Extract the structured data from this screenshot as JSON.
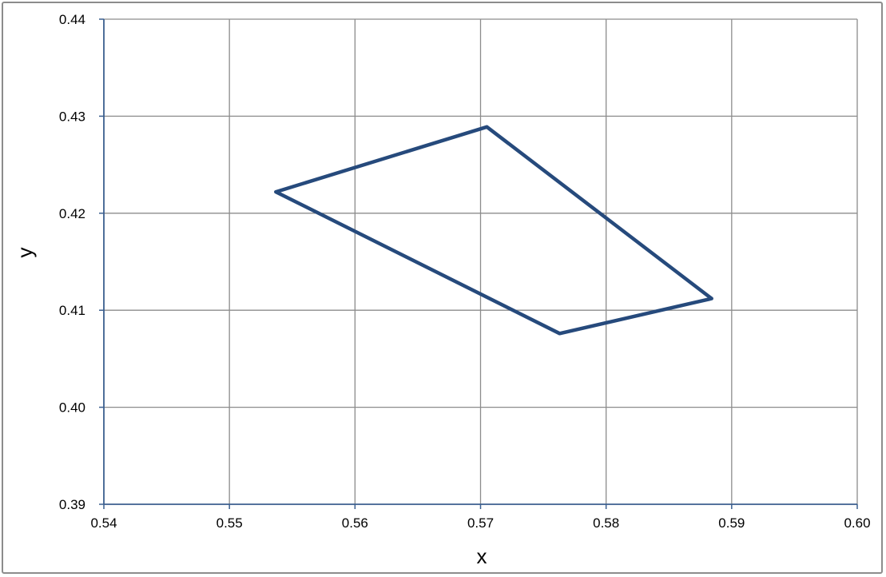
{
  "chart_data": {
    "type": "line",
    "title": "",
    "xlabel": "x",
    "ylabel": "y",
    "xlim": [
      0.54,
      0.6
    ],
    "ylim": [
      0.39,
      0.44
    ],
    "x_ticks": [
      "0.54",
      "0.55",
      "0.56",
      "0.57",
      "0.58",
      "0.59",
      "0.60"
    ],
    "y_ticks": [
      "0.39",
      "0.40",
      "0.41",
      "0.42",
      "0.43",
      "0.44"
    ],
    "grid": true,
    "series": [
      {
        "color": "#264a7c",
        "x": [
          0.5537,
          0.5705,
          0.5884,
          0.5763,
          0.5537
        ],
        "y": [
          0.4222,
          0.4289,
          0.4112,
          0.4076,
          0.4222
        ]
      }
    ],
    "colors": {
      "axis": "#3b5f8f",
      "grid": "#8c8c8c",
      "frame": "#8c8c8c"
    }
  }
}
